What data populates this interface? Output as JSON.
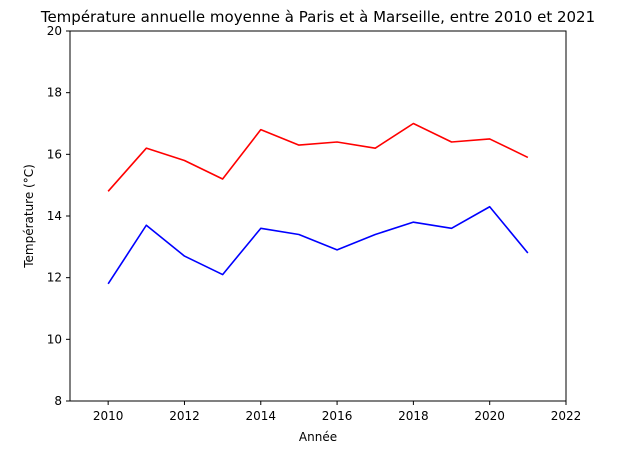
{
  "chart_data": {
    "type": "line",
    "title": "Température annuelle moyenne à Paris et à Marseille, entre 2010 et 2021",
    "xlabel": "Année",
    "ylabel": "Température (°C)",
    "xlim": [
      2009,
      2022
    ],
    "ylim": [
      8,
      20
    ],
    "xticks": [
      2010,
      2012,
      2014,
      2016,
      2018,
      2020,
      2022
    ],
    "yticks": [
      8,
      10,
      12,
      14,
      16,
      18,
      20
    ],
    "grid": false,
    "legend": "none",
    "x": [
      2010,
      2011,
      2012,
      2013,
      2014,
      2015,
      2016,
      2017,
      2018,
      2019,
      2020,
      2021
    ],
    "series": [
      {
        "color": "#ff0000",
        "values": [
          14.8,
          16.2,
          15.8,
          15.2,
          16.8,
          16.3,
          16.4,
          16.2,
          17.0,
          16.4,
          16.5,
          15.9
        ]
      },
      {
        "color": "#0000ff",
        "values": [
          11.8,
          13.7,
          12.7,
          12.1,
          13.6,
          13.4,
          12.9,
          13.4,
          13.8,
          13.6,
          14.3,
          12.8
        ]
      }
    ]
  }
}
